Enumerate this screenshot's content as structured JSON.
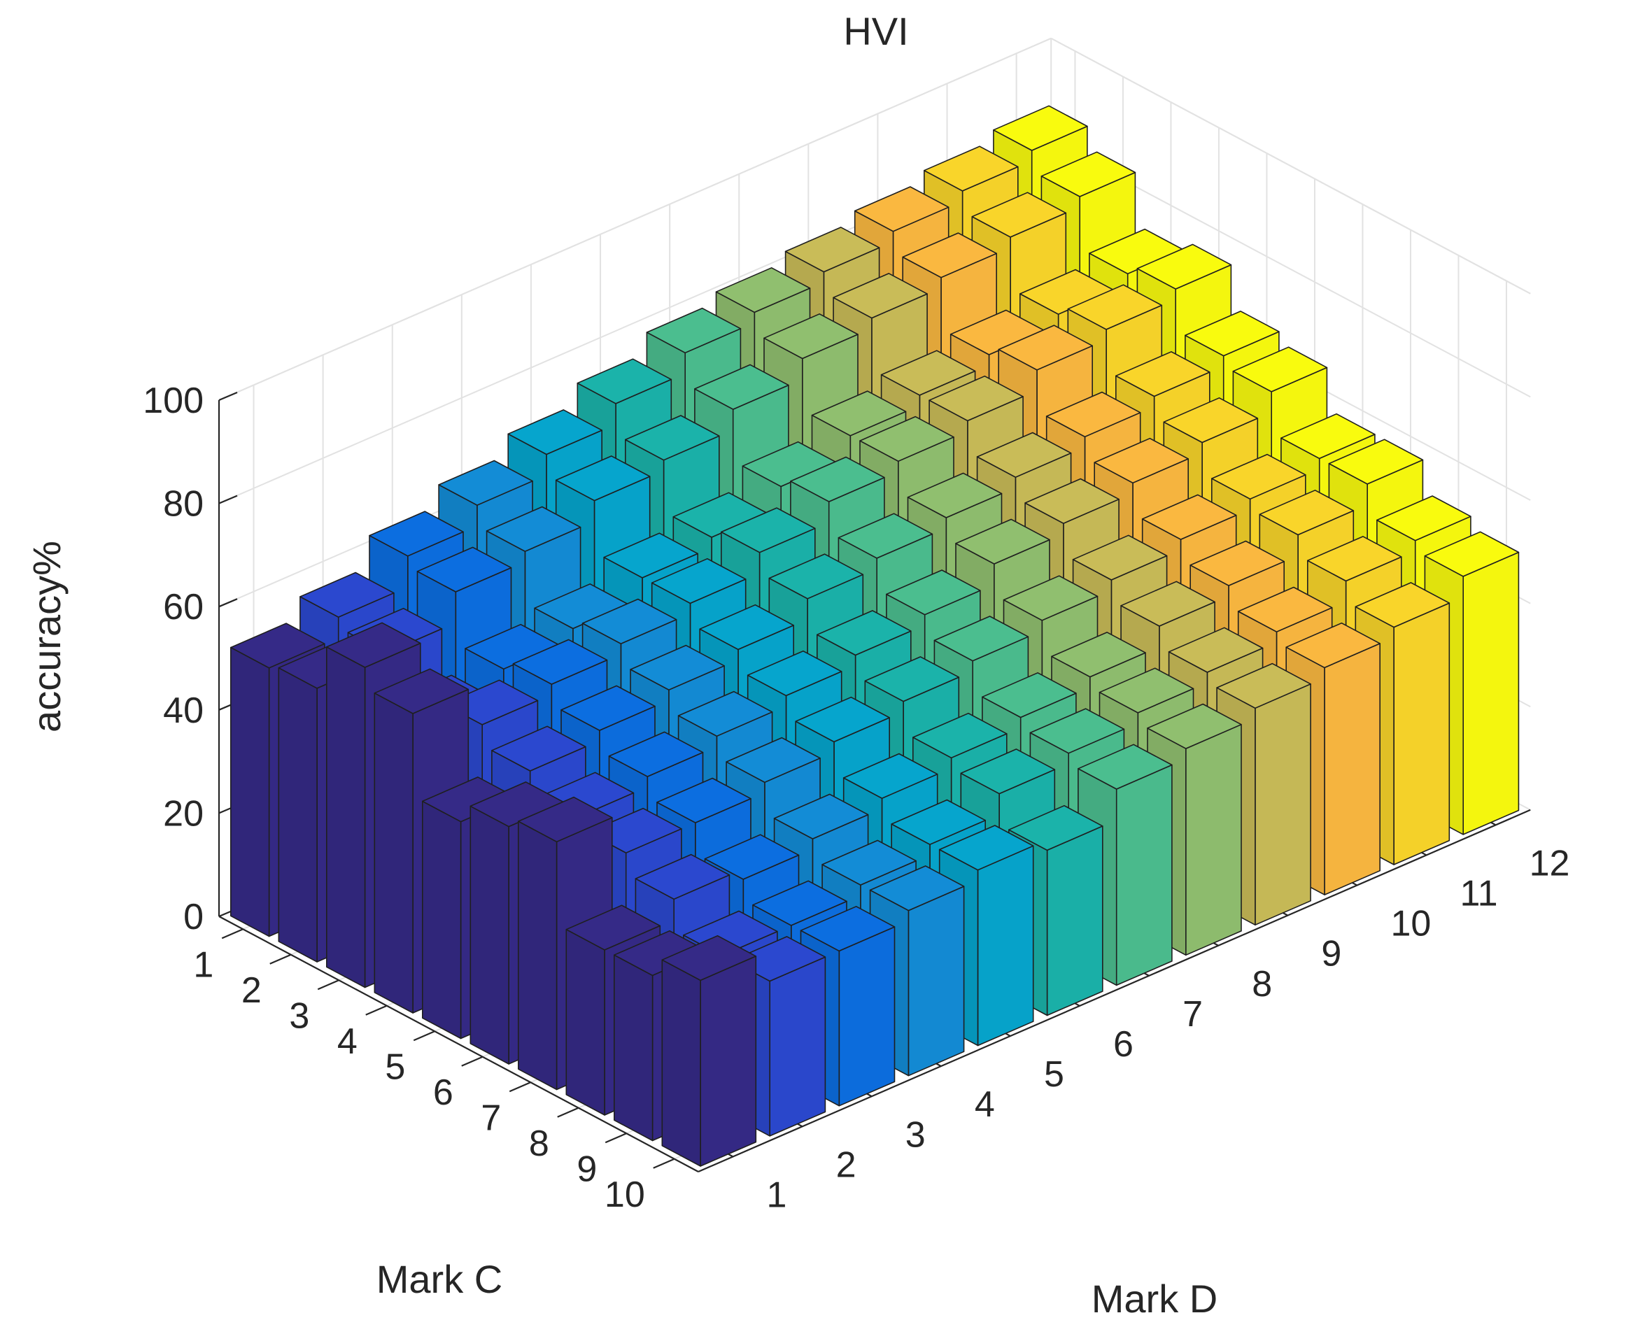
{
  "chart_data": {
    "type": "bar3d",
    "title": "HVI",
    "xlabel": "Mark C",
    "ylabel": "Mark D",
    "zlabel": "accuracy%",
    "x_ticks": [
      "1",
      "2",
      "3",
      "4",
      "5",
      "6",
      "7",
      "8",
      "9",
      "10"
    ],
    "y_ticks": [
      "1",
      "2",
      "3",
      "4",
      "5",
      "6",
      "7",
      "8",
      "9",
      "10",
      "11",
      "12"
    ],
    "z_ticks": [
      "0",
      "20",
      "40",
      "60",
      "80",
      "100"
    ],
    "zlim": [
      0,
      100
    ],
    "grid": true,
    "colormap": "parula",
    "values": [
      [
        52,
        56,
        62,
        66,
        70,
        74,
        78,
        80,
        82,
        84,
        86,
        88
      ],
      [
        53,
        54,
        60,
        62,
        66,
        68,
        72,
        76,
        78,
        80,
        82,
        84
      ],
      [
        62,
        46,
        50,
        52,
        56,
        58,
        62,
        66,
        68,
        70,
        72,
        74
      ],
      [
        58,
        50,
        52,
        54,
        56,
        60,
        64,
        66,
        68,
        72,
        74,
        76
      ],
      [
        42,
        46,
        48,
        50,
        52,
        56,
        58,
        60,
        62,
        64,
        66,
        68
      ],
      [
        46,
        42,
        44,
        46,
        48,
        50,
        52,
        56,
        58,
        60,
        62,
        66
      ],
      [
        48,
        40,
        40,
        42,
        44,
        46,
        48,
        50,
        52,
        54,
        56,
        58
      ],
      [
        32,
        36,
        34,
        36,
        38,
        40,
        42,
        44,
        48,
        50,
        54,
        58
      ],
      [
        32,
        30,
        30,
        32,
        34,
        38,
        40,
        42,
        44,
        46,
        50,
        52
      ],
      [
        36,
        30,
        30,
        32,
        34,
        32,
        38,
        40,
        42,
        44,
        46,
        50
      ]
    ],
    "series_colors": [
      "#352a87",
      "#2b48cf",
      "#0c6ee0",
      "#138cd6",
      "#06a5cd",
      "#1bb3aa",
      "#4bbe8f",
      "#90bf6f",
      "#c9bc58",
      "#fab840",
      "#f9d52a",
      "#f9fb0e"
    ]
  }
}
